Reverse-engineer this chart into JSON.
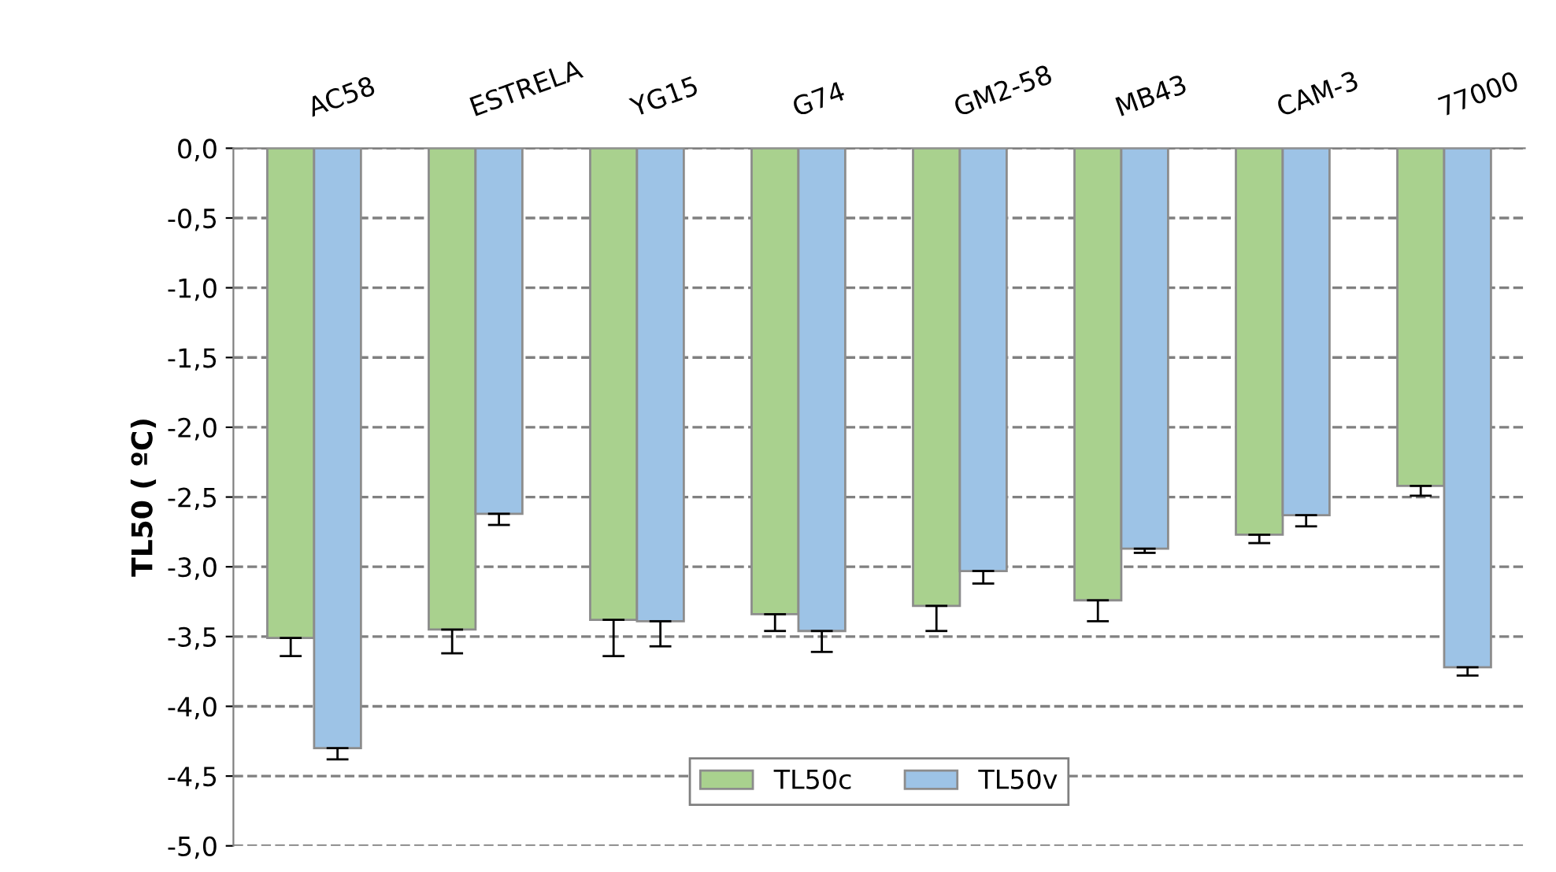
{
  "chart_data": {
    "type": "bar",
    "ylabel": "TL50 ( ºC)",
    "categories": [
      "AC58",
      "ESTRELA",
      "YG15",
      "G74",
      "GM2-58",
      "MB43",
      "CAM-3",
      "77000"
    ],
    "series": [
      {
        "name": "TL50c",
        "color": "#a9d18e",
        "values": [
          -3.51,
          -3.45,
          -3.38,
          -3.34,
          -3.28,
          -3.24,
          -2.77,
          -2.42
        ],
        "errors": [
          [
            -3.64,
            -3.51
          ],
          [
            -3.62,
            -3.45
          ],
          [
            -3.64,
            -3.38
          ],
          [
            -3.46,
            -3.34
          ],
          [
            -3.46,
            -3.28
          ],
          [
            -3.39,
            -3.24
          ],
          [
            -2.83,
            -2.77
          ],
          [
            -2.49,
            -2.42
          ]
        ]
      },
      {
        "name": "TL50v",
        "color": "#9dc3e6",
        "values": [
          -4.3,
          -2.62,
          -3.39,
          -3.46,
          -3.03,
          -2.87,
          -2.63,
          -3.72
        ],
        "errors": [
          [
            -4.38,
            -4.3
          ],
          [
            -2.7,
            -2.62
          ],
          [
            -3.57,
            -3.39
          ],
          [
            -3.61,
            -3.46
          ],
          [
            -3.12,
            -3.03
          ],
          [
            -2.9,
            -2.87
          ],
          [
            -2.71,
            -2.63
          ],
          [
            -3.78,
            -3.72
          ]
        ]
      }
    ],
    "ylim": [
      -5,
      0
    ],
    "yticks": [
      {
        "value": 0,
        "label": "0,0"
      },
      {
        "value": -0.5,
        "label": "-0,5"
      },
      {
        "value": -1,
        "label": "-1,0"
      },
      {
        "value": -1.5,
        "label": "-1,5"
      },
      {
        "value": -2,
        "label": "-2,0"
      },
      {
        "value": -2.5,
        "label": "-2,5"
      },
      {
        "value": -3,
        "label": "-3,0"
      },
      {
        "value": -3.5,
        "label": "-3,5"
      },
      {
        "value": -4,
        "label": "-4,0"
      },
      {
        "value": -4.5,
        "label": "-4,5"
      },
      {
        "value": -5,
        "label": "-5,0"
      }
    ],
    "grid": "y",
    "legend": "bottom"
  }
}
